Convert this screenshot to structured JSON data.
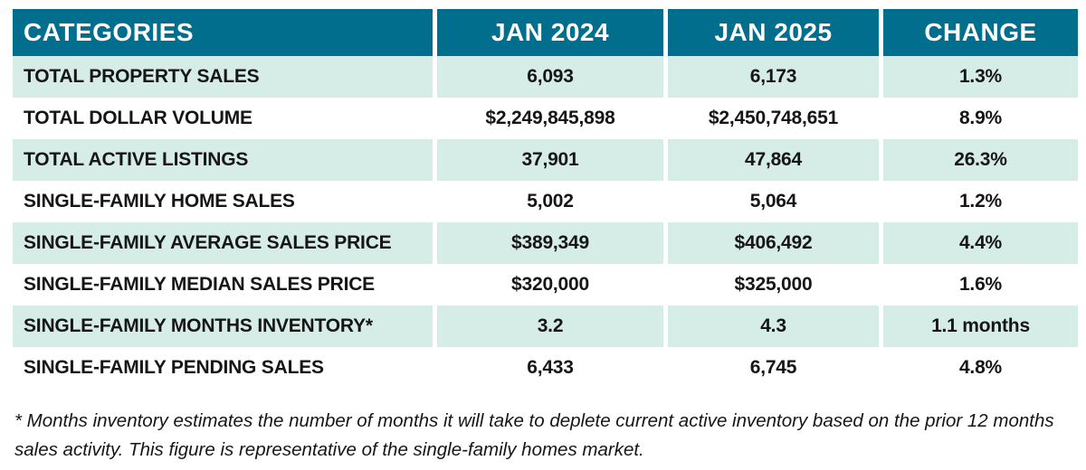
{
  "colors": {
    "header_bg": "#006e8c",
    "alt_row_bg": "#d6ece6",
    "header_text": "#ffffff",
    "body_text": "#161616"
  },
  "chart_data": {
    "type": "table",
    "columns": [
      "CATEGORIES",
      "JAN 2024",
      "JAN 2025",
      "CHANGE"
    ],
    "rows": [
      {
        "category": "TOTAL PROPERTY SALES",
        "jan_2024": "6,093",
        "jan_2025": "6,173",
        "change": "1.3%"
      },
      {
        "category": "TOTAL DOLLAR VOLUME",
        "jan_2024": "$2,249,845,898",
        "jan_2025": "$2,450,748,651",
        "change": "8.9%"
      },
      {
        "category": "TOTAL ACTIVE LISTINGS",
        "jan_2024": "37,901",
        "jan_2025": "47,864",
        "change": "26.3%"
      },
      {
        "category": "SINGLE-FAMILY HOME SALES",
        "jan_2024": "5,002",
        "jan_2025": "5,064",
        "change": "1.2%"
      },
      {
        "category": "SINGLE-FAMILY AVERAGE SALES PRICE",
        "jan_2024": "$389,349",
        "jan_2025": "$406,492",
        "change": "4.4%"
      },
      {
        "category": "SINGLE-FAMILY MEDIAN SALES PRICE",
        "jan_2024": "$320,000",
        "jan_2025": "$325,000",
        "change": "1.6%"
      },
      {
        "category": "SINGLE-FAMILY MONTHS INVENTORY*",
        "jan_2024": "3.2",
        "jan_2025": "4.3",
        "change": "1.1 months"
      },
      {
        "category": "SINGLE-FAMILY PENDING SALES",
        "jan_2024": "6,433",
        "jan_2025": "6,745",
        "change": "4.8%"
      }
    ],
    "footnote": "* Months inventory estimates the number of months it will take to deplete current active inventory based on the prior 12 months sales activity. This figure is representative of the single-family homes market."
  }
}
